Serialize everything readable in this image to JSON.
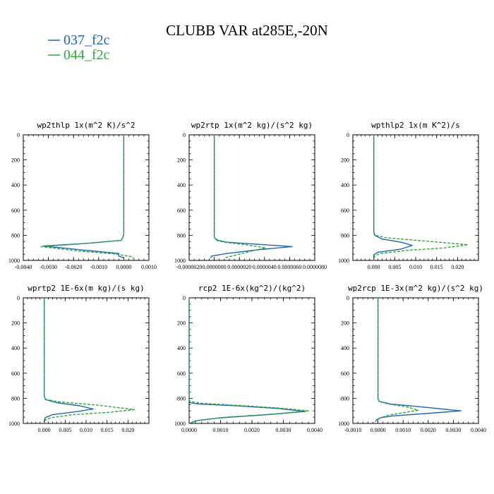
{
  "title": "CLUBB VAR at285E,-20N",
  "colors": {
    "blue": "#2066b0",
    "green": "#2ea836"
  },
  "legend": [
    {
      "label": "037_f2c",
      "color": "#2066b0",
      "dashed": false
    },
    {
      "label": "044_f2c",
      "color": "#2ea836",
      "dashed": true
    }
  ],
  "chart_data": [
    {
      "type": "line",
      "name": "wp2thlp",
      "title": "wp2thlp  1x(m^2 K)/s^2",
      "xlim": [
        -0.004,
        0.001
      ],
      "ylim": [
        1000,
        0
      ],
      "y_inverted": true,
      "xticks": [
        -0.004,
        -0.003,
        -0.002,
        -0.001,
        0.0,
        0.001
      ],
      "xtick_labels": [
        "-0.0040",
        "-0.0030",
        "-0.0020",
        "-0.0010",
        "0.0000",
        "0.0010"
      ],
      "yticks": [
        0,
        200,
        400,
        600,
        800,
        1000
      ],
      "series": [
        {
          "name": "037_f2c",
          "color": "#2066b0",
          "dashed": false,
          "x": [
            0.0,
            0.0,
            -1e-05,
            -5e-05,
            -0.0001,
            -0.0015,
            -0.0032,
            -0.0015,
            -0.0002,
            -0.0002,
            0.0,
            0.0
          ],
          "y": [
            0,
            780,
            805,
            820,
            840,
            865,
            885,
            920,
            945,
            965,
            980,
            1000
          ]
        },
        {
          "name": "044_f2c",
          "color": "#2ea836",
          "dashed": true,
          "x": [
            0.0,
            0.0,
            -1e-05,
            -5e-05,
            -0.0001,
            -0.0018,
            -0.0033,
            -0.0018,
            -0.0003,
            0.0003,
            0.0004,
            0.0004
          ],
          "y": [
            0,
            780,
            805,
            820,
            840,
            870,
            890,
            925,
            950,
            970,
            985,
            1000
          ]
        }
      ]
    },
    {
      "type": "line",
      "name": "wp2rtp",
      "title": "wp2rtp  1x(m^2 kg)/(s^2 kg)",
      "xlim": [
        -2e-06,
        8e-06
      ],
      "ylim": [
        1000,
        0
      ],
      "y_inverted": true,
      "xticks": [
        -2e-06,
        0.0,
        2e-06,
        4e-06,
        6e-06,
        8e-06
      ],
      "xtick_labels": [
        "-0.0000020",
        "0.0000000",
        "0.0000020",
        "0.0000040",
        "0.0000060",
        "0.0000080"
      ],
      "yticks": [
        0,
        200,
        400,
        600,
        800,
        1000
      ],
      "series": [
        {
          "name": "037_f2c",
          "color": "#2066b0",
          "dashed": false,
          "x": [
            0.0,
            0.0,
            5e-08,
            3e-07,
            1e-06,
            3.2e-06,
            6.2e-06,
            3.5e-06,
            1e-06,
            -2e-07,
            -3e-07
          ],
          "y": [
            0,
            810,
            825,
            840,
            855,
            870,
            890,
            915,
            945,
            965,
            980
          ]
        },
        {
          "name": "044_f2c",
          "color": "#2ea836",
          "dashed": true,
          "x": [
            0.0,
            0.0,
            5e-08,
            2e-07,
            8e-07,
            2.5e-06,
            4.1e-06,
            3e-06,
            1.8e-06,
            1e-06,
            8e-07
          ],
          "y": [
            0,
            810,
            825,
            840,
            855,
            875,
            900,
            925,
            955,
            975,
            985
          ]
        }
      ]
    },
    {
      "type": "line",
      "name": "wpthlp2",
      "title": "wpthlp2  1x(m K^2)/s",
      "xlim": [
        -0.005,
        0.025
      ],
      "ylim": [
        1000,
        0
      ],
      "y_inverted": true,
      "xticks": [
        0.0,
        0.005,
        0.01,
        0.015,
        0.02
      ],
      "xtick_labels": [
        "0.000",
        "0.005",
        "0.010",
        "0.015",
        "0.020"
      ],
      "yticks": [
        0,
        200,
        400,
        600,
        800,
        1000
      ],
      "series": [
        {
          "name": "037_f2c",
          "color": "#2066b0",
          "dashed": false,
          "x": [
            0.0,
            0.0,
            0.0002,
            0.002,
            0.0065,
            0.0092,
            0.0065,
            0.001,
            0.0,
            0.0
          ],
          "y": [
            0,
            770,
            800,
            830,
            855,
            880,
            910,
            935,
            955,
            1000
          ]
        },
        {
          "name": "044_f2c",
          "color": "#2ea836",
          "dashed": true,
          "x": [
            0.0,
            0.0,
            0.0003,
            0.003,
            0.012,
            0.0225,
            0.017,
            0.008,
            0.0015,
            0.0002,
            0.0
          ],
          "y": [
            0,
            770,
            800,
            820,
            845,
            875,
            900,
            920,
            945,
            965,
            1000
          ]
        }
      ]
    },
    {
      "type": "line",
      "name": "wprtp2",
      "title": "wprtp2  1E-6x(m kg)/(s kg)",
      "xlim": [
        -0.005,
        0.025
      ],
      "ylim": [
        1000,
        0
      ],
      "y_inverted": true,
      "xticks": [
        0.0,
        0.005,
        0.01,
        0.015,
        0.02
      ],
      "xtick_labels": [
        "0.000",
        "0.005",
        "0.010",
        "0.015",
        "0.020"
      ],
      "yticks": [
        0,
        200,
        400,
        600,
        800,
        1000
      ],
      "series": [
        {
          "name": "037_f2c",
          "color": "#2066b0",
          "dashed": false,
          "x": [
            0.0,
            0.0,
            0.0003,
            0.003,
            0.0085,
            0.0117,
            0.008,
            0.002,
            0.0002,
            0.0
          ],
          "y": [
            0,
            780,
            810,
            835,
            860,
            885,
            905,
            930,
            955,
            1000
          ]
        },
        {
          "name": "044_f2c",
          "color": "#2ea836",
          "dashed": true,
          "x": [
            0.0,
            0.0,
            0.0004,
            0.004,
            0.013,
            0.0215,
            0.016,
            0.007,
            0.0015,
            0.0002,
            0.0
          ],
          "y": [
            0,
            780,
            810,
            830,
            855,
            890,
            910,
            930,
            955,
            975,
            1000
          ]
        }
      ]
    },
    {
      "type": "line",
      "name": "rcp2",
      "title": "rcp2  1E-6x(kg^2)/(kg^2)",
      "xlim": [
        0.0,
        0.004
      ],
      "ylim": [
        1000,
        0
      ],
      "y_inverted": true,
      "xticks": [
        0.0,
        0.001,
        0.002,
        0.003,
        0.004
      ],
      "xtick_labels": [
        "0.0000",
        "0.0010",
        "0.0020",
        "0.0030",
        "0.0040"
      ],
      "yticks": [
        0,
        200,
        400,
        600,
        800,
        1000
      ],
      "series": [
        {
          "name": "037_f2c",
          "color": "#2066b0",
          "dashed": false,
          "x": [
            0.0,
            0.0,
            3e-05,
            0.0003,
            0.0015,
            0.0028,
            0.0037,
            0.0025,
            0.001,
            0.0002,
            0.0
          ],
          "y": [
            0,
            820,
            835,
            845,
            860,
            880,
            905,
            930,
            955,
            980,
            1000
          ]
        },
        {
          "name": "044_f2c",
          "color": "#2ea836",
          "dashed": true,
          "x": [
            0.0,
            0.0,
            3e-05,
            0.0004,
            0.0018,
            0.003,
            0.0038,
            0.0027,
            0.0012,
            0.0003,
            0.0
          ],
          "y": [
            0,
            810,
            825,
            840,
            860,
            880,
            900,
            925,
            950,
            975,
            1000
          ]
        }
      ]
    },
    {
      "type": "line",
      "name": "wp2rcp",
      "title": "wp2rcp  1E-3x(m^2 kg)/(s^2 kg)",
      "xlim": [
        -0.001,
        0.004
      ],
      "ylim": [
        1000,
        0
      ],
      "y_inverted": true,
      "xticks": [
        -0.001,
        0.0,
        0.001,
        0.002,
        0.003,
        0.004
      ],
      "xtick_labels": [
        "-0.0010",
        "0.0000",
        "0.0010",
        "0.0020",
        "0.0030",
        "0.0040"
      ],
      "yticks": [
        0,
        200,
        400,
        600,
        800,
        1000
      ],
      "series": [
        {
          "name": "037_f2c",
          "color": "#2066b0",
          "dashed": false,
          "x": [
            0.0,
            0.0,
            5e-05,
            0.0005,
            0.0018,
            0.0033,
            0.002,
            0.0006,
            0.0001,
            -5e-05,
            -0.0001
          ],
          "y": [
            0,
            800,
            825,
            845,
            870,
            900,
            920,
            940,
            955,
            970,
            985
          ]
        },
        {
          "name": "044_f2c",
          "color": "#2ea836",
          "dashed": true,
          "x": [
            0.0,
            0.0,
            4e-05,
            0.0004,
            0.0012,
            0.0016,
            0.001,
            0.0004,
            0.0001,
            -3e-05
          ],
          "y": [
            0,
            800,
            825,
            845,
            870,
            895,
            915,
            935,
            955,
            975
          ]
        }
      ]
    }
  ]
}
